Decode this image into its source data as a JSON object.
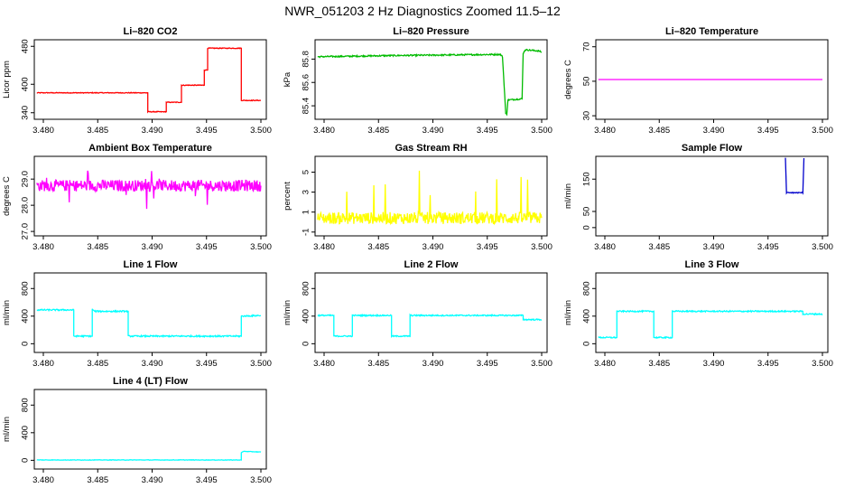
{
  "title": "NWR_051203  2 Hz Diagnostics Zoomed 11.5–12",
  "colors": {
    "axis": "#000000",
    "red": "#ff0000",
    "green": "#00bb00",
    "magenta": "#ff00ff",
    "yellow": "#ffff00",
    "blue": "#0000cc",
    "cyan": "#00ffff"
  },
  "chart_data": [
    {
      "id": "co2",
      "type": "line",
      "title": "Li–820 CO2",
      "ylabel": "Licor ppm",
      "color": "red",
      "xlim": [
        3.4785,
        3.5005
      ],
      "ylim": [
        330,
        490
      ],
      "xticks": [
        "3.480",
        "3.485",
        "3.490",
        "3.495",
        "3.500"
      ],
      "yticks": [
        "340",
        "400",
        "480"
      ],
      "steps": [
        [
          3.4794,
          382
        ],
        [
          3.4896,
          382
        ],
        [
          3.4896,
          342
        ],
        [
          3.4913,
          342
        ],
        [
          3.4913,
          362
        ],
        [
          3.4927,
          362
        ],
        [
          3.4927,
          398
        ],
        [
          3.4948,
          398
        ],
        [
          3.4948,
          430
        ],
        [
          3.4951,
          430
        ],
        [
          3.4951,
          476
        ],
        [
          3.4982,
          476
        ],
        [
          3.4982,
          366
        ],
        [
          3.5,
          366
        ]
      ],
      "noise": 0.8
    },
    {
      "id": "pressure",
      "type": "line",
      "title": "Li–820 Pressure",
      "ylabel": "kPa",
      "color": "green",
      "xlim": [
        3.4785,
        3.5005
      ],
      "ylim": [
        85.3,
        85.95
      ],
      "xticks": [
        "3.480",
        "3.485",
        "3.490",
        "3.495",
        "3.500"
      ],
      "yticks": [
        "85.4",
        "85.6",
        "85.8"
      ],
      "steps": [
        [
          3.4794,
          85.82
        ],
        [
          3.4862,
          85.83
        ],
        [
          3.4962,
          85.84
        ],
        [
          3.4964,
          85.82
        ],
        [
          3.4966,
          85.5
        ],
        [
          3.4967,
          85.33
        ],
        [
          3.4968,
          85.33
        ],
        [
          3.4969,
          85.45
        ],
        [
          3.4982,
          85.46
        ],
        [
          3.4983,
          85.85
        ],
        [
          3.4985,
          85.88
        ],
        [
          3.4997,
          85.87
        ],
        [
          3.5,
          85.86
        ]
      ],
      "noise": 0.006
    },
    {
      "id": "li_temp",
      "type": "line",
      "title": "Li–820 Temperature",
      "ylabel": "degrees C",
      "color": "magenta",
      "xlim": [
        3.4785,
        3.5005
      ],
      "ylim": [
        29,
        73
      ],
      "xticks": [
        "3.480",
        "3.485",
        "3.490",
        "3.495",
        "3.500"
      ],
      "yticks": [
        "30",
        "50",
        "70"
      ],
      "steps": [
        [
          3.4794,
          51
        ],
        [
          3.5,
          51
        ]
      ],
      "noise": 0
    },
    {
      "id": "box_temp",
      "type": "line",
      "title": "Ambient Box Temperature",
      "ylabel": "degrees C",
      "color": "magenta",
      "xlim": [
        3.4785,
        3.5005
      ],
      "ylim": [
        26.9,
        29.8
      ],
      "xticks": [
        "3.480",
        "3.485",
        "3.490",
        "3.495",
        "3.500"
      ],
      "yticks": [
        "27.0",
        "28.0",
        "29.0"
      ],
      "steps": [
        [
          3.4794,
          28.75
        ],
        [
          3.5,
          28.75
        ]
      ],
      "noise": 0.22
    },
    {
      "id": "rh",
      "type": "line",
      "title": "Gas Stream RH",
      "ylabel": "percent",
      "color": "yellow",
      "xlim": [
        3.4785,
        3.5005
      ],
      "ylim": [
        -1.2,
        6.4
      ],
      "xticks": [
        "3.480",
        "3.485",
        "3.490",
        "3.495",
        "3.500"
      ],
      "yticks": [
        "-1",
        "1",
        "3",
        "5"
      ],
      "steps": [
        [
          3.4794,
          0.4
        ],
        [
          3.5,
          0.4
        ]
      ],
      "noise": 0.6
    },
    {
      "id": "sample_flow",
      "type": "line",
      "title": "Sample Flow",
      "ylabel": "ml/min",
      "color": "blue",
      "xlim": [
        3.4785,
        3.5005
      ],
      "ylim": [
        -20,
        215
      ],
      "xticks": [
        "3.480",
        "3.485",
        "3.490",
        "3.495",
        "3.500"
      ],
      "yticks": [
        "0",
        "50",
        "150"
      ],
      "steps": [
        [
          3.4966,
          215
        ],
        [
          3.4967,
          108
        ],
        [
          3.4982,
          108
        ],
        [
          3.4983,
          215
        ]
      ],
      "noise": 1.5
    },
    {
      "id": "line1",
      "type": "line",
      "title": "Line 1 Flow",
      "ylabel": "ml/min",
      "color": "cyan",
      "xlim": [
        3.4785,
        3.5005
      ],
      "ylim": [
        -100,
        1000
      ],
      "xticks": [
        "3.480",
        "3.485",
        "3.490",
        "3.495",
        "3.500"
      ],
      "yticks": [
        "0",
        "400",
        "800"
      ],
      "steps": [
        [
          3.4794,
          490
        ],
        [
          3.4828,
          490
        ],
        [
          3.4828,
          110
        ],
        [
          3.4845,
          110
        ],
        [
          3.4845,
          500
        ],
        [
          3.4847,
          470
        ],
        [
          3.4878,
          470
        ],
        [
          3.4878,
          110
        ],
        [
          3.4982,
          110
        ],
        [
          3.4982,
          400
        ],
        [
          3.5,
          410
        ]
      ],
      "noise": 10
    },
    {
      "id": "line2",
      "type": "line",
      "title": "Line 2 Flow",
      "ylabel": "ml/min",
      "color": "cyan",
      "xlim": [
        3.4785,
        3.5005
      ],
      "ylim": [
        -100,
        1000
      ],
      "xticks": [
        "3.480",
        "3.485",
        "3.490",
        "3.495",
        "3.500"
      ],
      "yticks": [
        "0",
        "400",
        "800"
      ],
      "steps": [
        [
          3.4794,
          410
        ],
        [
          3.4809,
          410
        ],
        [
          3.4809,
          110
        ],
        [
          3.4826,
          110
        ],
        [
          3.4826,
          410
        ],
        [
          3.4862,
          410
        ],
        [
          3.4862,
          110
        ],
        [
          3.4879,
          110
        ],
        [
          3.4879,
          410
        ],
        [
          3.4983,
          410
        ],
        [
          3.4983,
          350
        ],
        [
          3.5,
          350
        ]
      ],
      "noise": 9
    },
    {
      "id": "line3",
      "type": "line",
      "title": "Line 3 Flow",
      "ylabel": "ml/min",
      "color": "cyan",
      "xlim": [
        3.4785,
        3.5005
      ],
      "ylim": [
        -100,
        1000
      ],
      "xticks": [
        "3.480",
        "3.485",
        "3.490",
        "3.495",
        "3.500"
      ],
      "yticks": [
        "0",
        "400",
        "800"
      ],
      "steps": [
        [
          3.4794,
          90
        ],
        [
          3.4811,
          90
        ],
        [
          3.4811,
          470
        ],
        [
          3.4845,
          470
        ],
        [
          3.4845,
          90
        ],
        [
          3.4862,
          90
        ],
        [
          3.4862,
          470
        ],
        [
          3.4982,
          470
        ],
        [
          3.4982,
          430
        ],
        [
          3.5,
          430
        ]
      ],
      "noise": 9
    },
    {
      "id": "line4",
      "type": "line",
      "title": "Line 4 (LT) Flow",
      "ylabel": "ml/min",
      "color": "cyan",
      "xlim": [
        3.4785,
        3.5005
      ],
      "ylim": [
        -100,
        1000
      ],
      "xticks": [
        "3.480",
        "3.485",
        "3.490",
        "3.495",
        "3.500"
      ],
      "yticks": [
        "0",
        "400",
        "800"
      ],
      "steps": [
        [
          3.4794,
          5
        ],
        [
          3.4982,
          5
        ],
        [
          3.4982,
          110
        ],
        [
          3.4984,
          130
        ],
        [
          3.5,
          120
        ]
      ],
      "noise": 3
    }
  ]
}
